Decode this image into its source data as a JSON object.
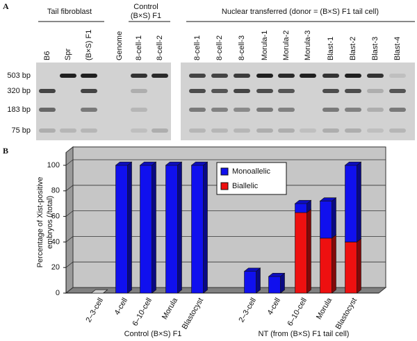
{
  "gel": {
    "panel_label": "A",
    "groups": [
      {
        "title": [
          "Tail fibroblast"
        ],
        "lanes": [
          "B6",
          "Spr",
          "(B×S) F1"
        ]
      },
      {
        "lanes": [
          "Genome"
        ]
      },
      {
        "title": [
          "Control",
          "(B×S) F1"
        ],
        "lanes": [
          "8-cell-1",
          "8-cell-2"
        ]
      },
      {
        "title": [
          "Nuclear transferred (donor = (B×S) F1 tail cell)"
        ],
        "lanes": [
          "8-cell-1",
          "8-cell-2",
          "8-cell-3",
          "Morula-1",
          "Morula-2",
          "Morula-3",
          "Blast-1",
          "Blast-2",
          "Blast-3",
          "Blast-4"
        ]
      }
    ],
    "markers": [
      "503 bp",
      "320 bp",
      "183 bp",
      "75 bp"
    ]
  },
  "chart_data": {
    "type": "bar3d_stacked",
    "panel_label": "B",
    "ylabel": [
      "Percentage of Xist-positive",
      "embryos (/total)"
    ],
    "categories": [
      "2–3-cell",
      "4-cell",
      "6–10-cell",
      "Morula",
      "Blastocyst",
      "2–3-cell",
      "4-cell",
      "6–10-cell",
      "Morula",
      "Blastocyst"
    ],
    "group_labels": [
      "Control (B×S) F1",
      "NT (from (B×S) F1 tail cell)"
    ],
    "series": [
      {
        "name": "Monoallelic",
        "color": "#1010ee",
        "values": [
          0,
          100,
          100,
          100,
          100,
          17,
          13,
          7,
          29,
          60
        ]
      },
      {
        "name": "Biallelic",
        "color": "#ee1010",
        "values": [
          0,
          0,
          0,
          0,
          0,
          0,
          0,
          63,
          43,
          40
        ]
      }
    ],
    "ylim": [
      0,
      110
    ],
    "yticks": [
      0,
      20,
      40,
      60,
      80,
      100
    ],
    "grid": true,
    "legend": "upper right"
  }
}
